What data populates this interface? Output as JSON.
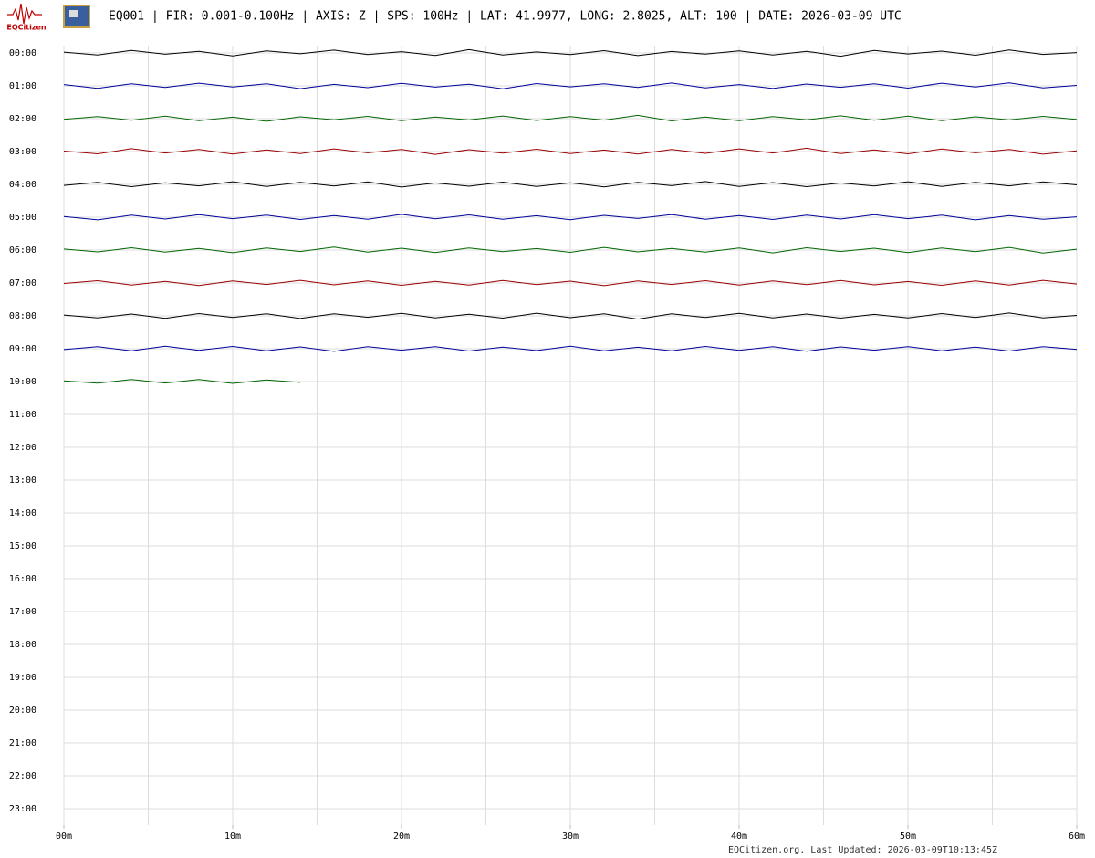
{
  "logo_text": "EQCitizen",
  "chart_data": {
    "type": "helicorder",
    "title": "EQ001 | FIR: 0.001-0.100Hz | AXIS: Z | SPS: 100Hz | LAT: 41.9977, LONG: 2.8025, ALT: 100 | DATE: 2026-03-09 UTC",
    "footer": "EQCitizen.org. Last Updated: 2026-03-09T10:13:45Z",
    "xlim": [
      0,
      60
    ],
    "xticks": [
      {
        "value": 0,
        "label": "00m"
      },
      {
        "value": 10,
        "label": "10m"
      },
      {
        "value": 20,
        "label": "20m"
      },
      {
        "value": 30,
        "label": "30m"
      },
      {
        "value": 40,
        "label": "40m"
      },
      {
        "value": 50,
        "label": "50m"
      },
      {
        "value": 60,
        "label": "60m"
      }
    ],
    "xgrid": [
      0,
      5,
      10,
      15,
      20,
      25,
      30,
      35,
      40,
      45,
      50,
      55,
      60
    ],
    "ylim": [
      -1,
      1
    ],
    "x": [
      0,
      2,
      4,
      6,
      8,
      10,
      12,
      14,
      16,
      18,
      20,
      22,
      24,
      26,
      28,
      30,
      32,
      34,
      36,
      38,
      40,
      42,
      44,
      46,
      48,
      50,
      52,
      54,
      56,
      58,
      60
    ],
    "rows": [
      {
        "label": "00:00",
        "color": "#000000",
        "values": [
          0.05,
          -0.12,
          0.15,
          -0.08,
          0.1,
          -0.18,
          0.12,
          -0.05,
          0.17,
          -0.1,
          0.08,
          -0.15,
          0.2,
          -0.12,
          0.06,
          -0.1,
          0.14,
          -0.16,
          0.09,
          -0.07,
          0.12,
          -0.13,
          0.1,
          -0.2,
          0.15,
          -0.06,
          0.11,
          -0.14,
          0.18,
          -0.09,
          0.02
        ]
      },
      {
        "label": "01:00",
        "color": "#000099",
        "values": [
          0.08,
          -0.15,
          0.12,
          -0.1,
          0.16,
          -0.07,
          0.13,
          -0.17,
          0.09,
          -0.11,
          0.15,
          -0.08,
          0.1,
          -0.18,
          0.14,
          -0.06,
          0.12,
          -0.1,
          0.17,
          -0.13,
          0.08,
          -0.16,
          0.11,
          -0.09,
          0.13,
          -0.14,
          0.16,
          -0.07,
          0.18,
          -0.12,
          0.03
        ]
      },
      {
        "label": "02:00",
        "color": "#006600",
        "values": [
          -0.04,
          0.13,
          -0.1,
          0.15,
          -0.12,
          0.09,
          -0.16,
          0.11,
          -0.07,
          0.14,
          -0.13,
          0.1,
          -0.08,
          0.16,
          -0.11,
          0.12,
          -0.09,
          0.2,
          -0.14,
          0.1,
          -0.12,
          0.13,
          -0.07,
          0.17,
          -0.1,
          0.15,
          -0.13,
          0.11,
          -0.08,
          0.14,
          -0.05
        ]
      },
      {
        "label": "03:00",
        "color": "#990000",
        "values": [
          0.03,
          -0.14,
          0.17,
          -0.09,
          0.12,
          -0.15,
          0.1,
          -0.12,
          0.16,
          -0.08,
          0.13,
          -0.17,
          0.11,
          -0.1,
          0.14,
          -0.12,
          0.09,
          -0.15,
          0.12,
          -0.11,
          0.16,
          -0.09,
          0.2,
          -0.13,
          0.1,
          -0.14,
          0.15,
          -0.08,
          0.12,
          -0.16,
          0.04
        ]
      },
      {
        "label": "04:00",
        "color": "#000000",
        "values": [
          -0.06,
          0.12,
          -0.14,
          0.1,
          -0.09,
          0.16,
          -0.12,
          0.13,
          -0.1,
          0.15,
          -0.16,
          0.09,
          -0.11,
          0.14,
          -0.13,
          0.1,
          -0.15,
          0.12,
          -0.08,
          0.17,
          -0.12,
          0.11,
          -0.14,
          0.09,
          -0.1,
          0.16,
          -0.13,
          0.12,
          -0.09,
          0.15,
          -0.03
        ]
      },
      {
        "label": "05:00",
        "color": "#000099",
        "values": [
          0.04,
          -0.16,
          0.13,
          -0.11,
          0.15,
          -0.09,
          0.12,
          -0.14,
          0.1,
          -0.12,
          0.17,
          -0.1,
          0.14,
          -0.13,
          0.09,
          -0.15,
          0.11,
          -0.08,
          0.16,
          -0.12,
          0.1,
          -0.14,
          0.13,
          -0.11,
          0.15,
          -0.09,
          0.12,
          -0.16,
          0.1,
          -0.13,
          0.02
        ]
      },
      {
        "label": "06:00",
        "color": "#006600",
        "values": [
          0.06,
          -0.11,
          0.14,
          -0.13,
          0.1,
          -0.16,
          0.12,
          -0.09,
          0.18,
          -0.12,
          0.11,
          -0.15,
          0.13,
          -0.1,
          0.09,
          -0.14,
          0.16,
          -0.11,
          0.1,
          -0.13,
          0.12,
          -0.17,
          0.14,
          -0.09,
          0.11,
          -0.15,
          0.13,
          -0.1,
          0.16,
          -0.18,
          0.05
        ]
      },
      {
        "label": "07:00",
        "color": "#990000",
        "values": [
          -0.03,
          0.14,
          -0.12,
          0.1,
          -0.15,
          0.13,
          -0.09,
          0.16,
          -0.11,
          0.12,
          -0.14,
          0.1,
          -0.13,
          0.15,
          -0.1,
          0.11,
          -0.16,
          0.12,
          -0.09,
          0.14,
          -0.12,
          0.13,
          -0.1,
          0.15,
          -0.11,
          0.09,
          -0.14,
          0.12,
          -0.13,
          0.16,
          -0.06
        ]
      },
      {
        "label": "08:00",
        "color": "#000000",
        "values": [
          0.05,
          -0.13,
          0.11,
          -0.15,
          0.14,
          -0.1,
          0.12,
          -0.16,
          0.13,
          -0.09,
          0.15,
          -0.12,
          0.1,
          -0.14,
          0.16,
          -0.11,
          0.12,
          -0.2,
          0.13,
          -0.1,
          0.15,
          -0.12,
          0.11,
          -0.14,
          0.09,
          -0.13,
          0.14,
          -0.1,
          0.17,
          -0.12,
          0.03
        ]
      },
      {
        "label": "09:00",
        "color": "#000099",
        "values": [
          -0.05,
          0.12,
          -0.13,
          0.15,
          -0.1,
          0.14,
          -0.12,
          0.11,
          -0.16,
          0.13,
          -0.09,
          0.12,
          -0.14,
          0.1,
          -0.11,
          0.15,
          -0.13,
          0.09,
          -0.12,
          0.14,
          -0.1,
          0.12,
          -0.15,
          0.11,
          -0.09,
          0.13,
          -0.12,
          0.1,
          -0.14,
          0.12,
          -0.04
        ]
      },
      {
        "label": "10:00",
        "color": "#006600",
        "values": [
          0.04,
          -0.1,
          0.12,
          -0.09,
          0.13,
          -0.11,
          0.1,
          -0.05,
          null,
          null,
          null,
          null,
          null,
          null,
          null,
          null,
          null,
          null,
          null,
          null,
          null,
          null,
          null,
          null,
          null,
          null,
          null,
          null,
          null,
          null,
          null
        ]
      },
      {
        "label": "11:00",
        "color": "#000000",
        "values": null
      },
      {
        "label": "12:00",
        "color": "#000099",
        "values": null
      },
      {
        "label": "13:00",
        "color": "#006600",
        "values": null
      },
      {
        "label": "14:00",
        "color": "#990000",
        "values": null
      },
      {
        "label": "15:00",
        "color": "#000000",
        "values": null
      },
      {
        "label": "16:00",
        "color": "#000099",
        "values": null
      },
      {
        "label": "17:00",
        "color": "#006600",
        "values": null
      },
      {
        "label": "18:00",
        "color": "#990000",
        "values": null
      },
      {
        "label": "19:00",
        "color": "#000000",
        "values": null
      },
      {
        "label": "20:00",
        "color": "#000099",
        "values": null
      },
      {
        "label": "21:00",
        "color": "#006600",
        "values": null
      },
      {
        "label": "22:00",
        "color": "#990000",
        "values": null
      },
      {
        "label": "23:00",
        "color": "#000000",
        "values": null
      }
    ]
  }
}
